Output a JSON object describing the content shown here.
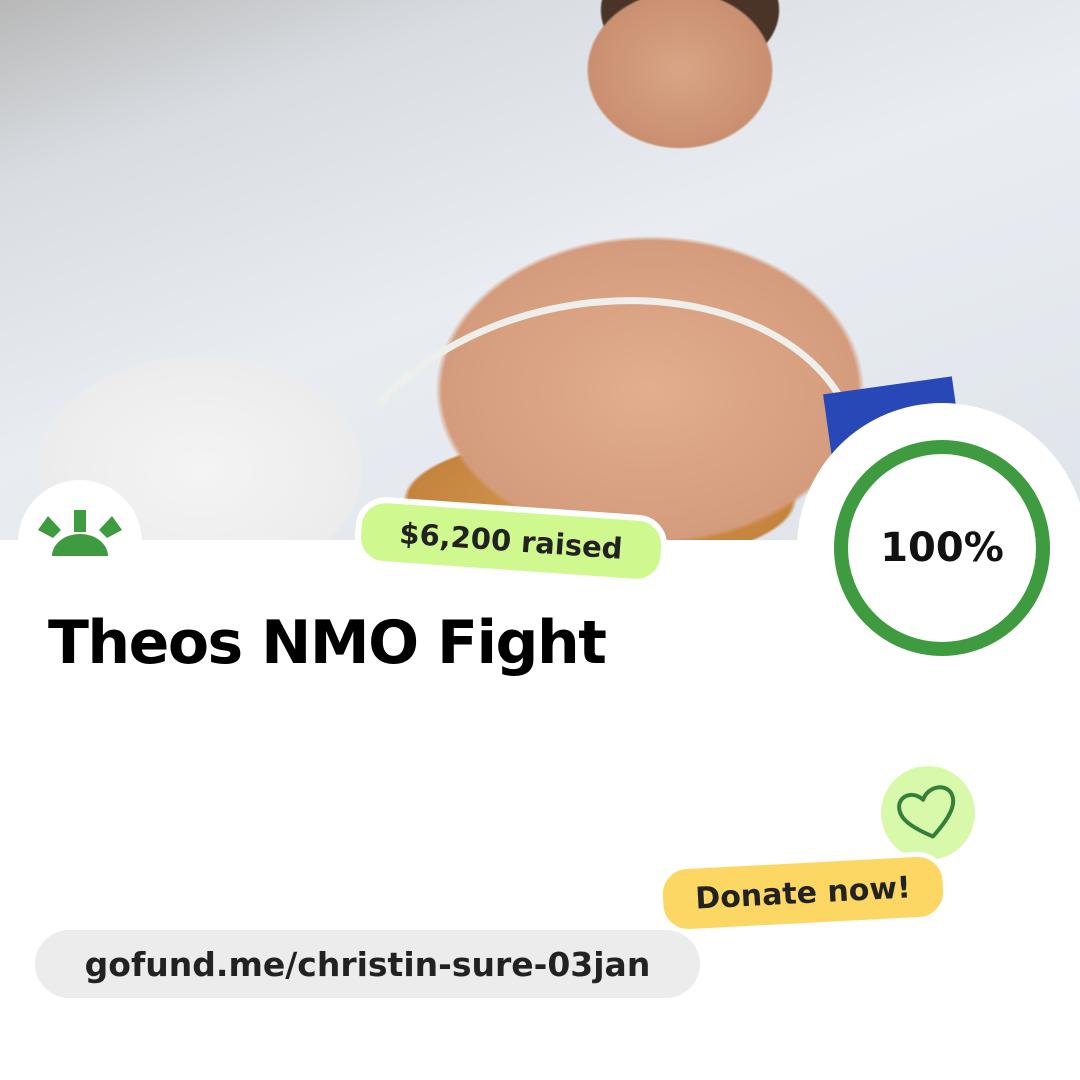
{
  "campaign": {
    "title": "Theos NMO Fight",
    "raised_label": "$6,200 raised",
    "progress_label": "100%",
    "progress_fraction": 1.0,
    "donate_label": "Donate now!",
    "url": "gofund.me/christin-sure-03jan"
  },
  "colors": {
    "brand_green": "#3f9b3f",
    "raised_pill": "#cff88f",
    "donate_pill": "#fdd764",
    "heart_bg": "#d9f9aa",
    "url_pill": "#ececec"
  },
  "icons": {
    "logo": "gofundme-logo-icon",
    "heart": "heart-icon"
  }
}
